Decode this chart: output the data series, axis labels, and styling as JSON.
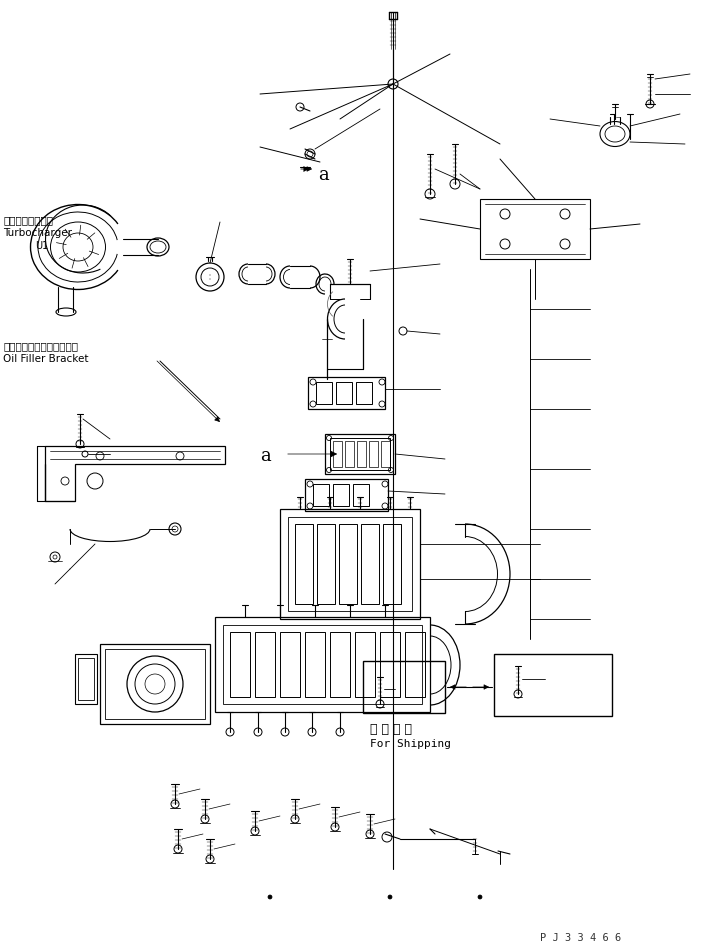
{
  "bg_color": "#ffffff",
  "line_color": "#000000",
  "fig_width": 7.1,
  "fig_height": 9.53,
  "dpi": 100,
  "watermark": "P J 3 3 4 6 6",
  "labels": {
    "turbocharger_jp": "ターボチャージャ",
    "turbocharger_en": "Turbocharger",
    "turbocharger_num": "U1",
    "oil_filler_jp": "オイルフィルタブラケット",
    "oil_filler_en": "Oil Filler Bracket",
    "label_a1": "a",
    "label_a2": "a",
    "shipping_jp": "運 搬 部 品",
    "shipping_en": "For Shipping"
  }
}
